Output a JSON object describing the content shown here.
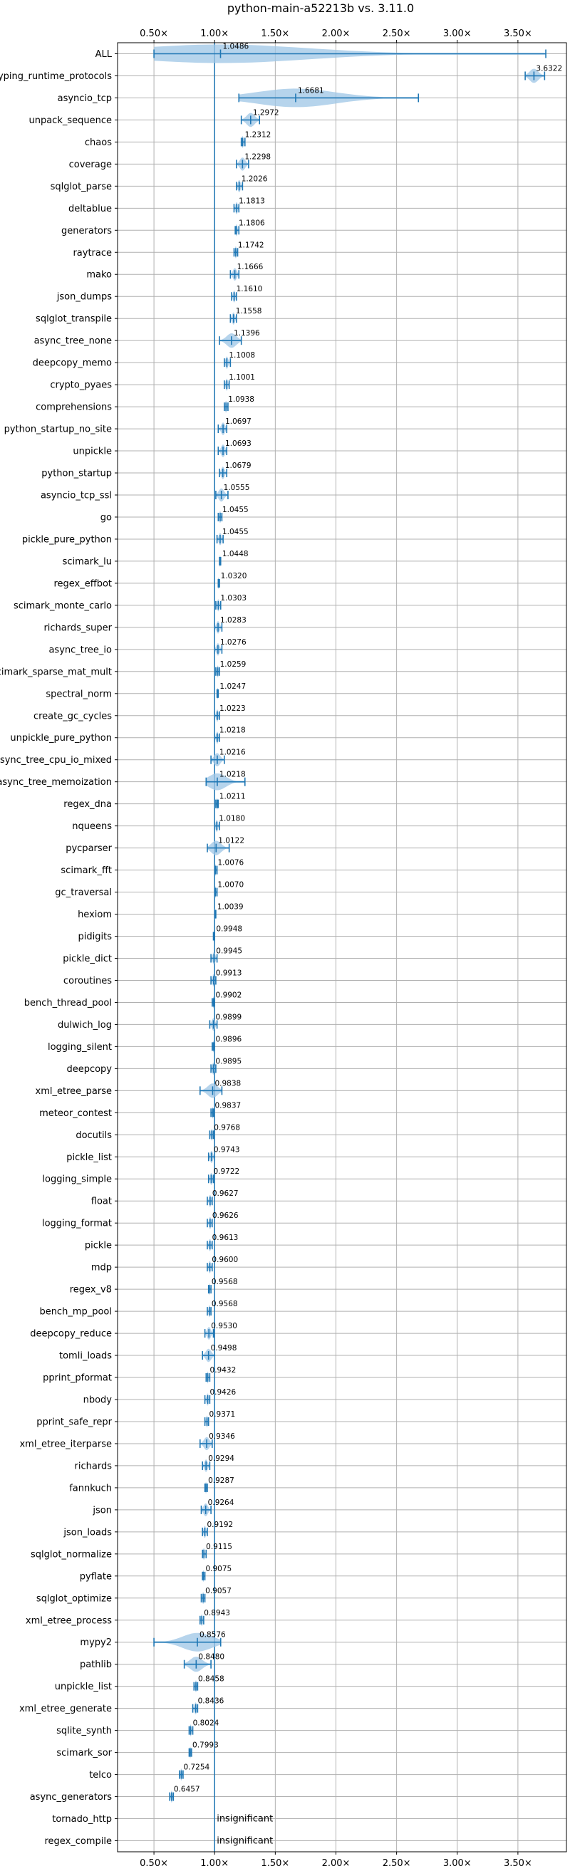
{
  "chart_data": {
    "type": "violin",
    "title": "python-main-a52213b vs. 3.11.0",
    "xlabel": "",
    "ylabel": "",
    "xlim": [
      0.2,
      3.9
    ],
    "x_ticks": [
      {
        "value": 0.5,
        "label": "0.50×"
      },
      {
        "value": 1.0,
        "label": "1.00×"
      },
      {
        "value": 1.5,
        "label": "1.50×"
      },
      {
        "value": 2.0,
        "label": "2.00×"
      },
      {
        "value": 2.5,
        "label": "2.50×"
      },
      {
        "value": 3.0,
        "label": "3.00×"
      },
      {
        "value": 3.5,
        "label": "3.50×"
      }
    ],
    "reference_line": 1.0,
    "grid": true,
    "color": "#1f77b4",
    "fill_color": "#9ec5e6",
    "benchmarks": [
      {
        "name": "ALL",
        "mean": 1.0486,
        "min": 0.5,
        "max": 3.73,
        "label": "1.0486"
      },
      {
        "name": "typing_runtime_protocols",
        "mean": 3.6322,
        "min": 3.56,
        "max": 3.72,
        "label": "3.6322"
      },
      {
        "name": "asyncio_tcp",
        "mean": 1.6681,
        "min": 1.2,
        "max": 2.68,
        "label": "1.6681"
      },
      {
        "name": "unpack_sequence",
        "mean": 1.2972,
        "min": 1.22,
        "max": 1.37,
        "label": "1.2972"
      },
      {
        "name": "chaos",
        "mean": 1.2312,
        "min": 1.22,
        "max": 1.25,
        "label": "1.2312"
      },
      {
        "name": "coverage",
        "mean": 1.2298,
        "min": 1.18,
        "max": 1.28,
        "label": "1.2298"
      },
      {
        "name": "sqlglot_parse",
        "mean": 1.2026,
        "min": 1.18,
        "max": 1.23,
        "label": "1.2026"
      },
      {
        "name": "deltablue",
        "mean": 1.1813,
        "min": 1.16,
        "max": 1.2,
        "label": "1.1813"
      },
      {
        "name": "generators",
        "mean": 1.1806,
        "min": 1.17,
        "max": 1.2,
        "label": "1.1806"
      },
      {
        "name": "raytrace",
        "mean": 1.1742,
        "min": 1.16,
        "max": 1.19,
        "label": "1.1742"
      },
      {
        "name": "mako",
        "mean": 1.1666,
        "min": 1.13,
        "max": 1.2,
        "label": "1.1666"
      },
      {
        "name": "json_dumps",
        "mean": 1.161,
        "min": 1.14,
        "max": 1.18,
        "label": "1.1610"
      },
      {
        "name": "sqlglot_transpile",
        "mean": 1.1558,
        "min": 1.13,
        "max": 1.18,
        "label": "1.1558"
      },
      {
        "name": "async_tree_none",
        "mean": 1.1396,
        "min": 1.04,
        "max": 1.22,
        "label": "1.1396"
      },
      {
        "name": "deepcopy_memo",
        "mean": 1.1008,
        "min": 1.08,
        "max": 1.13,
        "label": "1.1008"
      },
      {
        "name": "crypto_pyaes",
        "mean": 1.1001,
        "min": 1.08,
        "max": 1.12,
        "label": "1.1001"
      },
      {
        "name": "comprehensions",
        "mean": 1.0938,
        "min": 1.08,
        "max": 1.11,
        "label": "1.0938"
      },
      {
        "name": "python_startup_no_site",
        "mean": 1.0697,
        "min": 1.03,
        "max": 1.1,
        "label": "1.0697"
      },
      {
        "name": "unpickle",
        "mean": 1.0693,
        "min": 1.03,
        "max": 1.1,
        "label": "1.0693"
      },
      {
        "name": "python_startup",
        "mean": 1.0679,
        "min": 1.04,
        "max": 1.1,
        "label": "1.0679"
      },
      {
        "name": "asyncio_tcp_ssl",
        "mean": 1.0555,
        "min": 1.01,
        "max": 1.11,
        "label": "1.0555"
      },
      {
        "name": "go",
        "mean": 1.0455,
        "min": 1.03,
        "max": 1.06,
        "label": "1.0455"
      },
      {
        "name": "pickle_pure_python",
        "mean": 1.0455,
        "min": 1.02,
        "max": 1.07,
        "label": "1.0455"
      },
      {
        "name": "scimark_lu",
        "mean": 1.0448,
        "min": 1.04,
        "max": 1.05,
        "label": "1.0448"
      },
      {
        "name": "regex_effbot",
        "mean": 1.032,
        "min": 1.03,
        "max": 1.04,
        "label": "1.0320"
      },
      {
        "name": "scimark_monte_carlo",
        "mean": 1.0303,
        "min": 1.01,
        "max": 1.05,
        "label": "1.0303"
      },
      {
        "name": "richards_super",
        "mean": 1.0283,
        "min": 1.0,
        "max": 1.06,
        "label": "1.0283"
      },
      {
        "name": "async_tree_io",
        "mean": 1.0276,
        "min": 1.0,
        "max": 1.06,
        "label": "1.0276"
      },
      {
        "name": "scimark_sparse_mat_mult",
        "mean": 1.0259,
        "min": 1.01,
        "max": 1.04,
        "label": "1.0259"
      },
      {
        "name": "spectral_norm",
        "mean": 1.0247,
        "min": 1.02,
        "max": 1.03,
        "label": "1.0247"
      },
      {
        "name": "create_gc_cycles",
        "mean": 1.0223,
        "min": 1.0,
        "max": 1.04,
        "label": "1.0223"
      },
      {
        "name": "unpickle_pure_python",
        "mean": 1.0218,
        "min": 1.0,
        "max": 1.04,
        "label": "1.0218"
      },
      {
        "name": "async_tree_cpu_io_mixed",
        "mean": 1.0216,
        "min": 0.97,
        "max": 1.08,
        "label": "1.0216"
      },
      {
        "name": "async_tree_memoization",
        "mean": 1.0218,
        "min": 0.93,
        "max": 1.25,
        "label": "1.0218"
      },
      {
        "name": "regex_dna",
        "mean": 1.0211,
        "min": 1.01,
        "max": 1.03,
        "label": "1.0211"
      },
      {
        "name": "nqueens",
        "mean": 1.018,
        "min": 1.0,
        "max": 1.04,
        "label": "1.0180"
      },
      {
        "name": "pycparser",
        "mean": 1.0122,
        "min": 0.94,
        "max": 1.12,
        "label": "1.0122"
      },
      {
        "name": "scimark_fft",
        "mean": 1.0076,
        "min": 1.0,
        "max": 1.02,
        "label": "1.0076"
      },
      {
        "name": "gc_traversal",
        "mean": 1.007,
        "min": 1.0,
        "max": 1.02,
        "label": "1.0070"
      },
      {
        "name": "hexiom",
        "mean": 1.0039,
        "min": 1.0,
        "max": 1.01,
        "label": "1.0039"
      },
      {
        "name": "pidigits",
        "mean": 0.9948,
        "min": 0.99,
        "max": 1.0,
        "label": "0.9948"
      },
      {
        "name": "pickle_dict",
        "mean": 0.9945,
        "min": 0.97,
        "max": 1.02,
        "label": "0.9945"
      },
      {
        "name": "coroutines",
        "mean": 0.9913,
        "min": 0.97,
        "max": 1.01,
        "label": "0.9913"
      },
      {
        "name": "bench_thread_pool",
        "mean": 0.9902,
        "min": 0.98,
        "max": 1.0,
        "label": "0.9902"
      },
      {
        "name": "dulwich_log",
        "mean": 0.9899,
        "min": 0.96,
        "max": 1.02,
        "label": "0.9899"
      },
      {
        "name": "logging_silent",
        "mean": 0.9896,
        "min": 0.98,
        "max": 1.0,
        "label": "0.9896"
      },
      {
        "name": "deepcopy",
        "mean": 0.9895,
        "min": 0.97,
        "max": 1.01,
        "label": "0.9895"
      },
      {
        "name": "xml_etree_parse",
        "mean": 0.9838,
        "min": 0.88,
        "max": 1.06,
        "label": "0.9838"
      },
      {
        "name": "meteor_contest",
        "mean": 0.9837,
        "min": 0.97,
        "max": 0.99,
        "label": "0.9837"
      },
      {
        "name": "docutils",
        "mean": 0.9768,
        "min": 0.96,
        "max": 0.99,
        "label": "0.9768"
      },
      {
        "name": "pickle_list",
        "mean": 0.9743,
        "min": 0.95,
        "max": 1.0,
        "label": "0.9743"
      },
      {
        "name": "logging_simple",
        "mean": 0.9722,
        "min": 0.95,
        "max": 0.99,
        "label": "0.9722"
      },
      {
        "name": "float",
        "mean": 0.9627,
        "min": 0.94,
        "max": 0.98,
        "label": "0.9627"
      },
      {
        "name": "logging_format",
        "mean": 0.9626,
        "min": 0.94,
        "max": 0.98,
        "label": "0.9626"
      },
      {
        "name": "pickle",
        "mean": 0.9613,
        "min": 0.94,
        "max": 0.98,
        "label": "0.9613"
      },
      {
        "name": "mdp",
        "mean": 0.96,
        "min": 0.94,
        "max": 0.98,
        "label": "0.9600"
      },
      {
        "name": "regex_v8",
        "mean": 0.9568,
        "min": 0.95,
        "max": 0.97,
        "label": "0.9568"
      },
      {
        "name": "bench_mp_pool",
        "mean": 0.9568,
        "min": 0.94,
        "max": 0.97,
        "label": "0.9568"
      },
      {
        "name": "deepcopy_reduce",
        "mean": 0.953,
        "min": 0.92,
        "max": 0.99,
        "label": "0.9530"
      },
      {
        "name": "tomli_loads",
        "mean": 0.9498,
        "min": 0.9,
        "max": 1.0,
        "label": "0.9498"
      },
      {
        "name": "pprint_pformat",
        "mean": 0.9432,
        "min": 0.93,
        "max": 0.96,
        "label": "0.9432"
      },
      {
        "name": "nbody",
        "mean": 0.9426,
        "min": 0.92,
        "max": 0.96,
        "label": "0.9426"
      },
      {
        "name": "pprint_safe_repr",
        "mean": 0.9371,
        "min": 0.92,
        "max": 0.95,
        "label": "0.9371"
      },
      {
        "name": "xml_etree_iterparse",
        "mean": 0.9346,
        "min": 0.88,
        "max": 0.98,
        "label": "0.9346"
      },
      {
        "name": "richards",
        "mean": 0.9294,
        "min": 0.9,
        "max": 0.96,
        "label": "0.9294"
      },
      {
        "name": "fannkuch",
        "mean": 0.9287,
        "min": 0.92,
        "max": 0.94,
        "label": "0.9287"
      },
      {
        "name": "json",
        "mean": 0.9264,
        "min": 0.89,
        "max": 0.97,
        "label": "0.9264"
      },
      {
        "name": "json_loads",
        "mean": 0.9192,
        "min": 0.9,
        "max": 0.94,
        "label": "0.9192"
      },
      {
        "name": "sqlglot_normalize",
        "mean": 0.9115,
        "min": 0.9,
        "max": 0.93,
        "label": "0.9115"
      },
      {
        "name": "pyflate",
        "mean": 0.9075,
        "min": 0.9,
        "max": 0.92,
        "label": "0.9075"
      },
      {
        "name": "sqlglot_optimize",
        "mean": 0.9057,
        "min": 0.89,
        "max": 0.92,
        "label": "0.9057"
      },
      {
        "name": "xml_etree_process",
        "mean": 0.8943,
        "min": 0.88,
        "max": 0.91,
        "label": "0.8943"
      },
      {
        "name": "mypy2",
        "mean": 0.8576,
        "min": 0.5,
        "max": 1.05,
        "label": "0.8576"
      },
      {
        "name": "pathlib",
        "mean": 0.848,
        "min": 0.75,
        "max": 0.97,
        "label": "0.8480"
      },
      {
        "name": "unpickle_list",
        "mean": 0.8458,
        "min": 0.83,
        "max": 0.86,
        "label": "0.8458"
      },
      {
        "name": "xml_etree_generate",
        "mean": 0.8436,
        "min": 0.82,
        "max": 0.86,
        "label": "0.8436"
      },
      {
        "name": "sqlite_synth",
        "mean": 0.8024,
        "min": 0.79,
        "max": 0.82,
        "label": "0.8024"
      },
      {
        "name": "scimark_sor",
        "mean": 0.7993,
        "min": 0.79,
        "max": 0.81,
        "label": "0.7993"
      },
      {
        "name": "telco",
        "mean": 0.7254,
        "min": 0.71,
        "max": 0.74,
        "label": "0.7254"
      },
      {
        "name": "async_generators",
        "mean": 0.6457,
        "min": 0.63,
        "max": 0.66,
        "label": "0.6457"
      },
      {
        "name": "tornado_http",
        "mean": null,
        "label": "insignificant"
      },
      {
        "name": "regex_compile",
        "mean": null,
        "label": "insignificant"
      }
    ]
  }
}
